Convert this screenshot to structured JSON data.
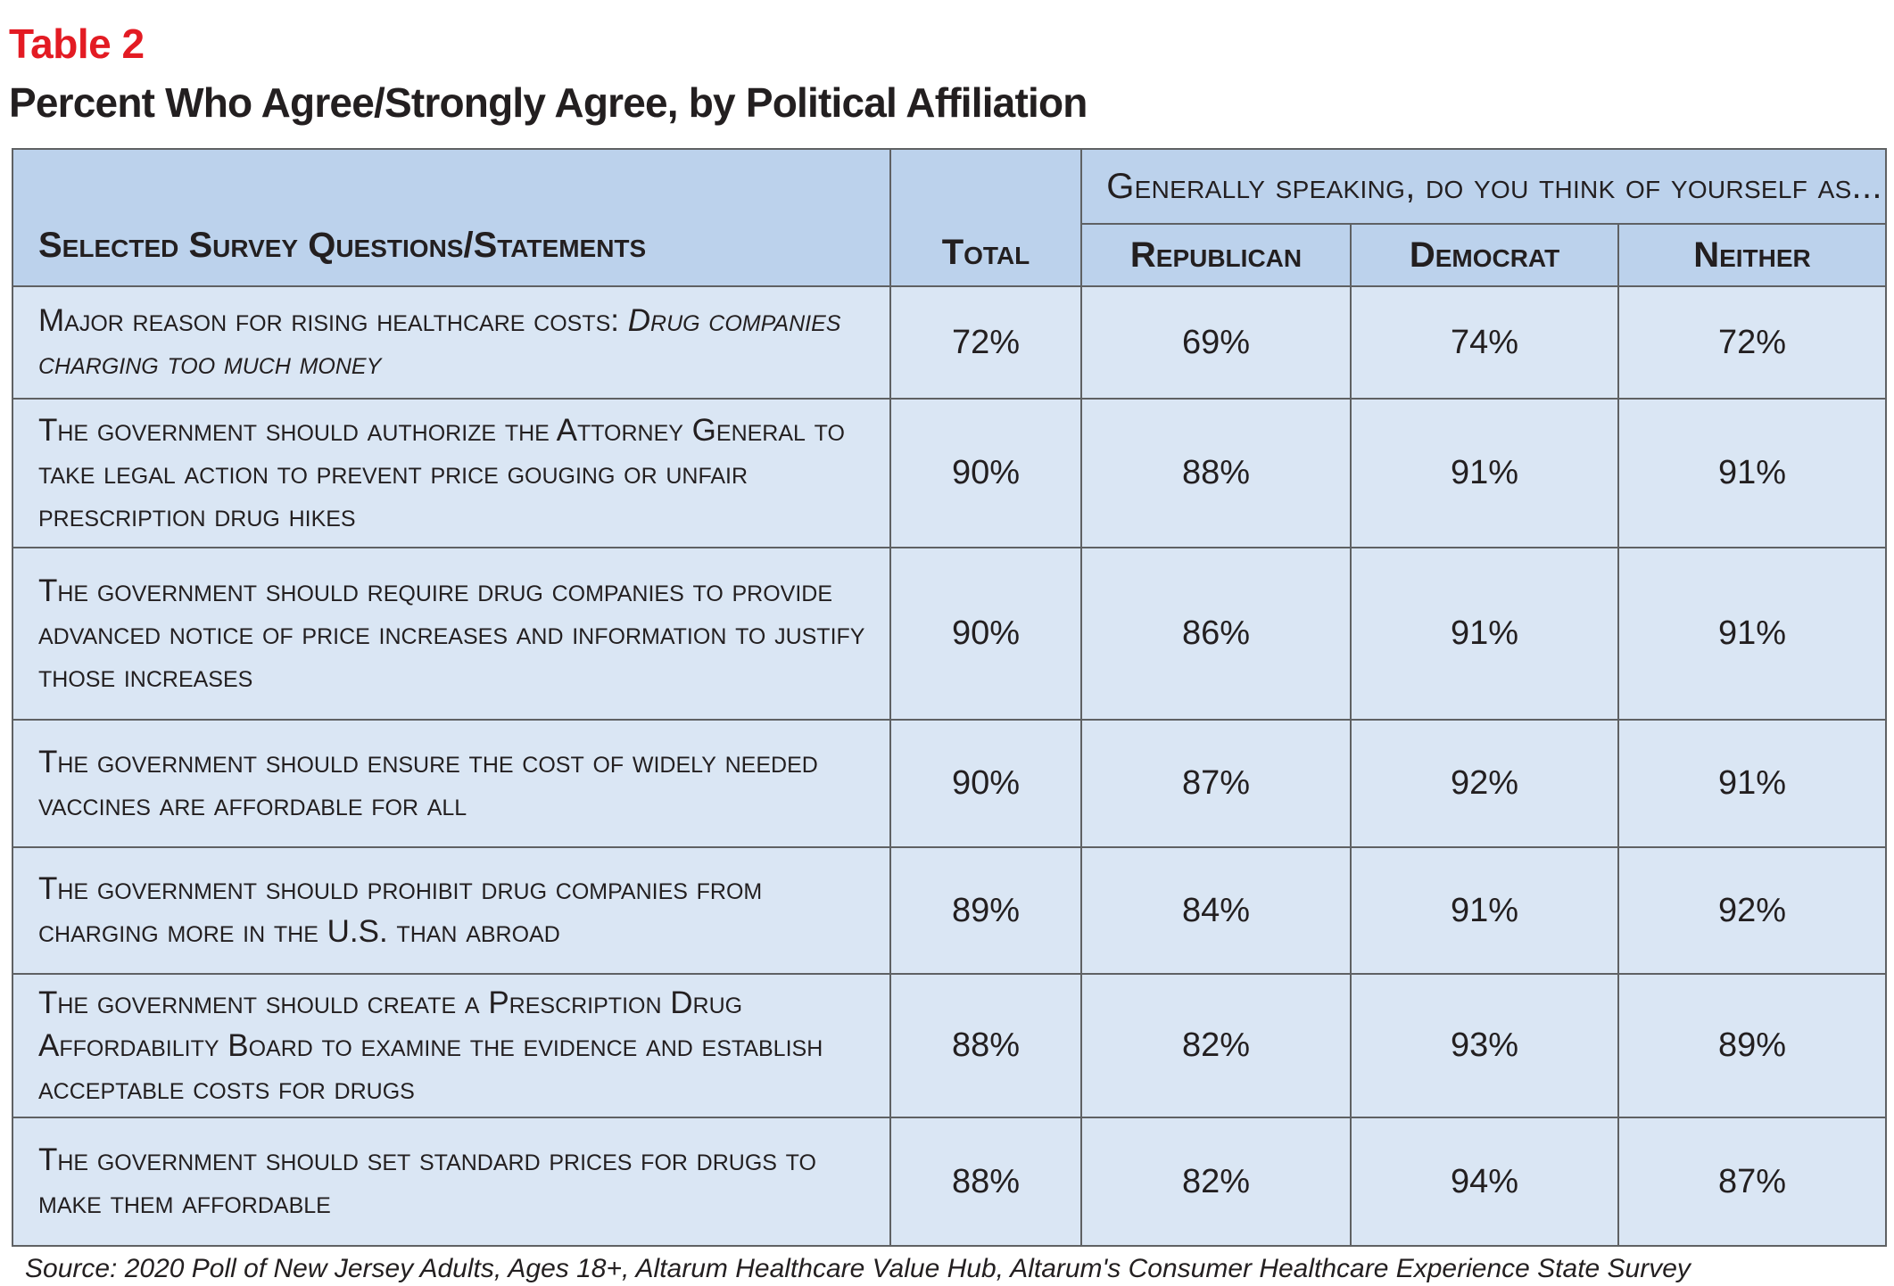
{
  "table_label": "Table 2",
  "title": "Percent Who Agree/Strongly Agree, by Political Affiliation",
  "header": {
    "question_col": "Selected Survey Questions/Statements",
    "total_col": "Total",
    "group_label": "Generally speaking, do you think of yourself as...",
    "parties": [
      "Republican",
      "Democrat",
      "Neither"
    ]
  },
  "rows": [
    {
      "question": "Major reason for rising healthcare costs: ",
      "question_em": "Drug companies charging too much money",
      "total": "72%",
      "republican": "69%",
      "democrat": "74%",
      "neither": "72%"
    },
    {
      "question": "The government should authorize the Attorney General to take legal action to prevent price gouging or unfair prescription drug hikes",
      "question_em": "",
      "total": "90%",
      "republican": "88%",
      "democrat": "91%",
      "neither": "91%"
    },
    {
      "question": "The government should require drug companies to provide advanced notice of price increases and information to justify those increases",
      "question_em": "",
      "total": "90%",
      "republican": "86%",
      "democrat": "91%",
      "neither": "91%"
    },
    {
      "question": "The government should ensure the cost of widely needed vaccines are affordable for all",
      "question_em": "",
      "total": "90%",
      "republican": "87%",
      "democrat": "92%",
      "neither": "91%"
    },
    {
      "question": "The government should prohibit drug companies from charging more in the U.S. than abroad",
      "question_em": "",
      "total": "89%",
      "republican": "84%",
      "democrat": "91%",
      "neither": "92%"
    },
    {
      "question": "The government should create a Prescription Drug Affordability Board to examine the evidence and establish acceptable costs for drugs",
      "question_em": "",
      "total": "88%",
      "republican": "82%",
      "democrat": "93%",
      "neither": "89%"
    },
    {
      "question": "The government should set standard prices for drugs to make them affordable",
      "question_em": "",
      "total": "88%",
      "republican": "82%",
      "democrat": "94%",
      "neither": "87%"
    }
  ],
  "source": "Source: 2020 Poll of New Jersey Adults, Ages 18+, Altarum Healthcare Value Hub, Altarum's Consumer Healthcare Experience State Survey",
  "colors": {
    "label_red": "#e31b23",
    "header_blue": "#bcd2ec",
    "body_blue": "#dae6f4",
    "border": "#5f6163",
    "text": "#231f20"
  }
}
